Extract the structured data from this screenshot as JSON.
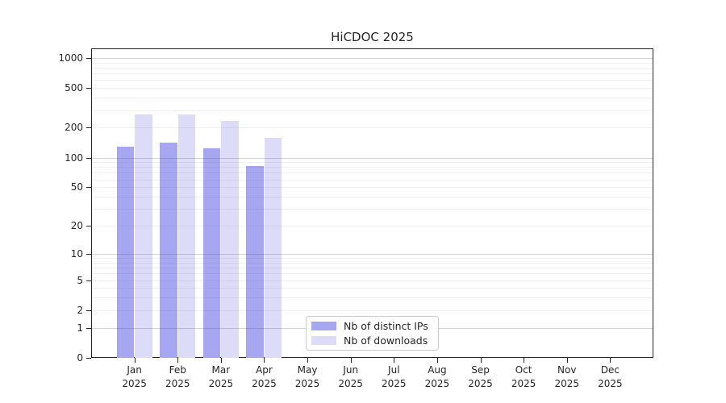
{
  "title": "HiCDOC 2025",
  "chart_data": {
    "type": "bar",
    "title": "HiCDOC 2025",
    "x_categories": [
      "Jan 2025",
      "Feb 2025",
      "Mar 2025",
      "Apr 2025",
      "May 2025",
      "Jun 2025",
      "Jul 2025",
      "Aug 2025",
      "Sep 2025",
      "Oct 2025",
      "Nov 2025",
      "Dec 2025"
    ],
    "series": [
      {
        "name": "Nb of distinct IPs",
        "color": "#a6a6f1",
        "values": [
          128,
          141,
          125,
          82,
          null,
          null,
          null,
          null,
          null,
          null,
          null,
          null
        ]
      },
      {
        "name": "Nb of downloads",
        "color": "#dcdcf9",
        "values": [
          270,
          270,
          233,
          158,
          null,
          null,
          null,
          null,
          null,
          null,
          null,
          null
        ]
      }
    ],
    "yscale": "log1p",
    "yticks": [
      0,
      1,
      2,
      5,
      10,
      20,
      50,
      100,
      200,
      500,
      1000
    ],
    "ylim": [
      0,
      1250
    ],
    "grid": true,
    "legend_position": "lower-center-inside"
  },
  "colors": {
    "axis": "#262626",
    "grid_minor": "#ececec",
    "grid_major": "#c8c8c8",
    "background": "#ffffff"
  }
}
